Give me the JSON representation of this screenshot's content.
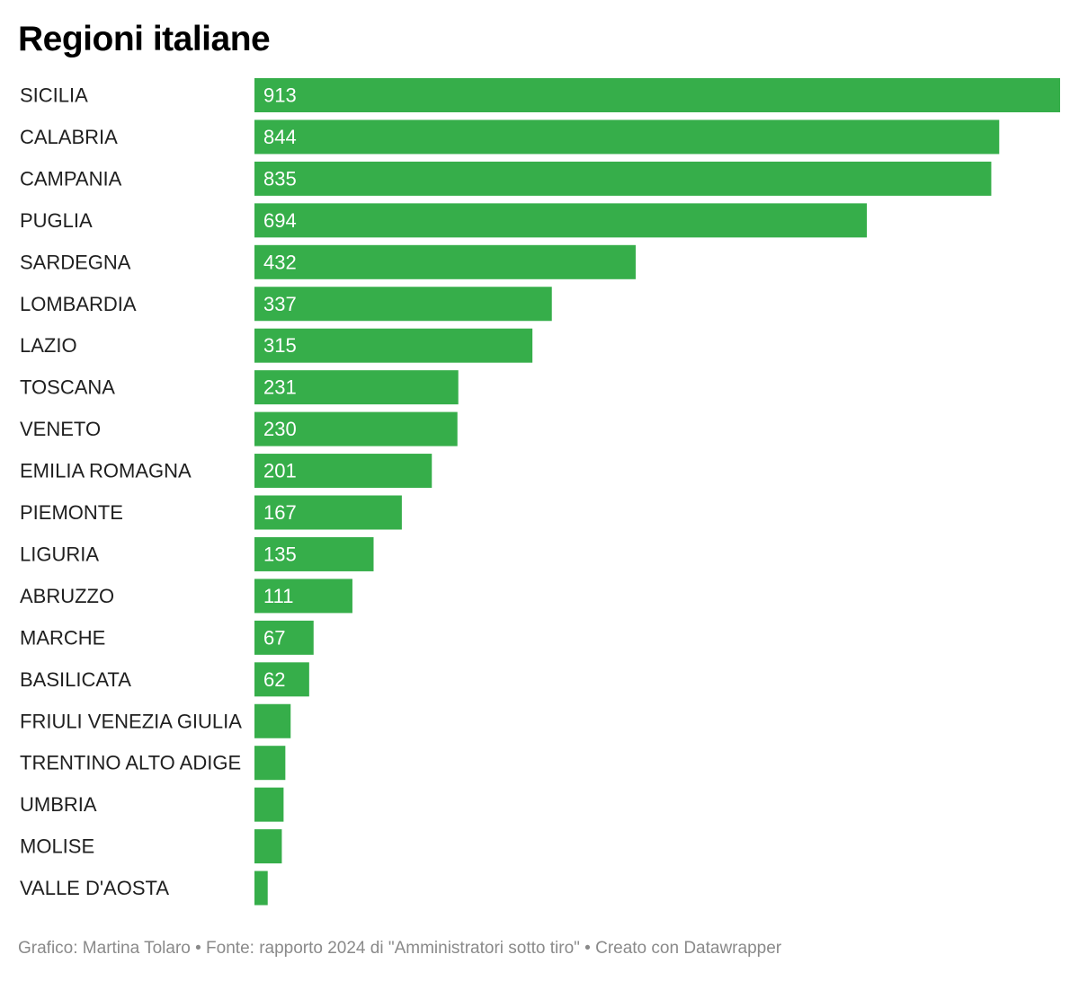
{
  "chart_data": {
    "type": "bar",
    "orientation": "horizontal",
    "title": "Regioni italiane",
    "categories": [
      "SICILIA",
      "CALABRIA",
      "CAMPANIA",
      "PUGLIA",
      "SARDEGNA",
      "LOMBARDIA",
      "LAZIO",
      "TOSCANA",
      "VENETO",
      "EMILIA ROMAGNA",
      "PIEMONTE",
      "LIGURIA",
      "ABRUZZO",
      "MARCHE",
      "BASILICATA",
      "FRIULI VENEZIA GIULIA",
      "TRENTINO ALTO ADIGE",
      "UMBRIA",
      "MOLISE",
      "VALLE D'AOSTA"
    ],
    "values": [
      913,
      844,
      835,
      694,
      432,
      337,
      315,
      231,
      230,
      201,
      167,
      135,
      111,
      67,
      62,
      41,
      35,
      33,
      31,
      15
    ],
    "value_labels_shown": [
      true,
      true,
      true,
      true,
      true,
      true,
      true,
      true,
      true,
      true,
      true,
      true,
      true,
      true,
      true,
      false,
      false,
      false,
      false,
      false
    ],
    "xlim": [
      0,
      913
    ],
    "xlabel": "",
    "ylabel": "",
    "grid": false,
    "bar_color": "#36ae4a",
    "footer": "Grafico: Martina Tolaro • Fonte: rapporto 2024 di \"Amministratori sotto tiro\" • Creato con Datawrapper"
  }
}
